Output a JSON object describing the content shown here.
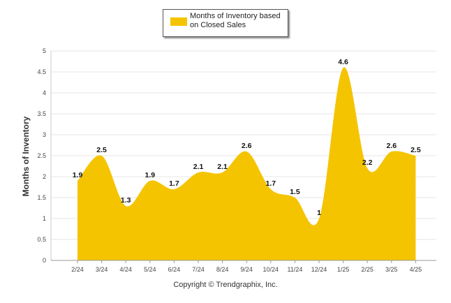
{
  "chart_data": {
    "type": "area",
    "categories": [
      "2/24",
      "3/24",
      "4/24",
      "5/24",
      "6/24",
      "7/24",
      "8/24",
      "9/24",
      "10/24",
      "11/24",
      "12/24",
      "1/25",
      "2/25",
      "3/25",
      "4/25"
    ],
    "series": [
      {
        "name": "Months of Inventory based on Closed Sales",
        "values": [
          1.9,
          2.5,
          1.3,
          1.9,
          1.7,
          2.1,
          2.1,
          2.6,
          1.7,
          1.5,
          1,
          4.6,
          2.2,
          2.6,
          2.5
        ],
        "labels": [
          "1.9",
          "2.5",
          "1.3",
          "1.9",
          "1.7",
          "2.1",
          "2.1",
          "2.6",
          "1.7",
          "1.5",
          "1",
          "4.6",
          "2.2",
          "2.6",
          "2.5"
        ]
      }
    ],
    "ylabel": "Months of Inventory",
    "ylim": [
      0,
      5
    ],
    "yticks": [
      "0",
      "0.5",
      "1",
      "1.5",
      "2",
      "2.5",
      "3",
      "3.5",
      "4",
      "4.5",
      "5"
    ],
    "grid": true,
    "legend_position": "top-center"
  },
  "colors": {
    "fill": "#F5C400",
    "grid": "#e6e6e6"
  },
  "footer": {
    "copyright": "Copyright © Trendgraphix, Inc."
  }
}
